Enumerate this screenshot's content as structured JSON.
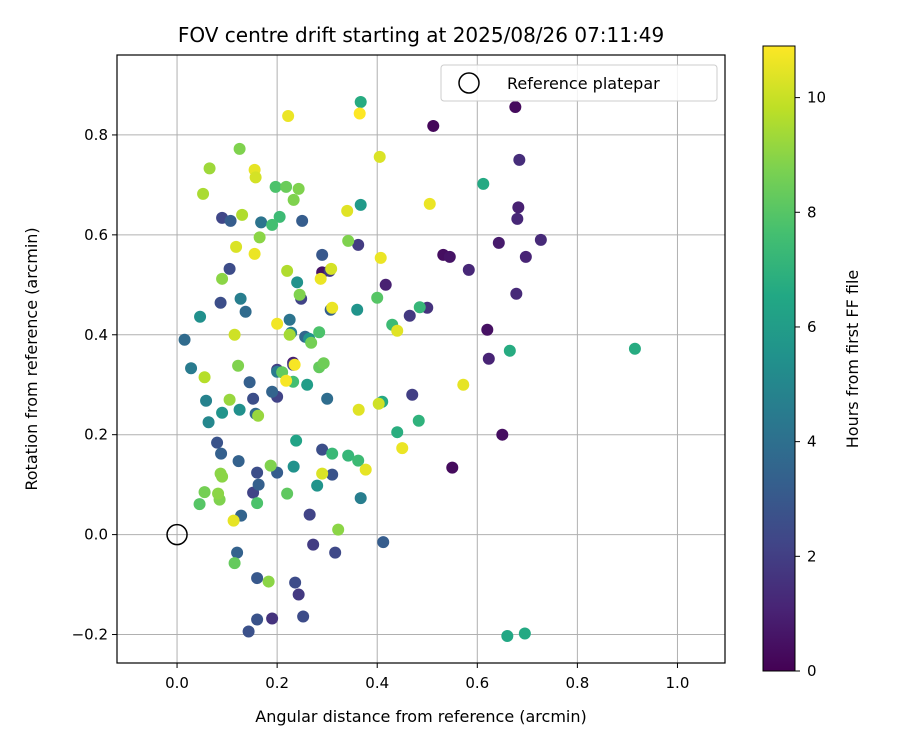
{
  "chart_data": {
    "type": "scatter",
    "title": "FOV centre drift starting at 2025/08/26 07:11:49",
    "xlabel": "Angular distance from reference (arcmin)",
    "ylabel": "Rotation from reference (arcmin)",
    "xlim": [
      -0.12,
      1.095
    ],
    "ylim": [
      -0.257,
      0.96
    ],
    "xticks": [
      0.0,
      0.2,
      0.4,
      0.6,
      0.8,
      1.0
    ],
    "xtick_labels": [
      "0.0",
      "0.2",
      "0.4",
      "0.6",
      "0.8",
      "1.0"
    ],
    "yticks": [
      -0.2,
      0.0,
      0.2,
      0.4,
      0.6,
      0.8
    ],
    "ytick_labels": [
      "−0.2",
      "0.0",
      "0.2",
      "0.4",
      "0.6",
      "0.8"
    ],
    "grid": true,
    "legend": {
      "placement": "top-right",
      "entries": [
        "Reference platepar"
      ]
    },
    "reference_point": {
      "x": 0.0,
      "y": 0.0,
      "label": "Reference platepar"
    },
    "colorbar": {
      "label": "Hours from first FF file",
      "colormap": "viridis",
      "range": [
        0,
        10.9
      ],
      "ticks": [
        0,
        2,
        4,
        6,
        8,
        10
      ],
      "tick_labels": [
        "0",
        "2",
        "4",
        "6",
        "8",
        "10"
      ]
    },
    "points": [
      {
        "x": 0.512,
        "y": 0.818,
        "h": 0.2
      },
      {
        "x": 0.676,
        "y": 0.856,
        "h": 0.3
      },
      {
        "x": 0.684,
        "y": 0.75,
        "h": 1.4
      },
      {
        "x": 0.682,
        "y": 0.655,
        "h": 1.0
      },
      {
        "x": 0.68,
        "y": 0.632,
        "h": 1.2
      },
      {
        "x": 0.727,
        "y": 0.59,
        "h": 1.3
      },
      {
        "x": 0.643,
        "y": 0.584,
        "h": 0.8
      },
      {
        "x": 0.697,
        "y": 0.556,
        "h": 1.1
      },
      {
        "x": 0.532,
        "y": 0.56,
        "h": 0.4
      },
      {
        "x": 0.545,
        "y": 0.556,
        "h": 0.6
      },
      {
        "x": 0.583,
        "y": 0.53,
        "h": 1.2
      },
      {
        "x": 0.678,
        "y": 0.482,
        "h": 1.3
      },
      {
        "x": 0.62,
        "y": 0.41,
        "h": 0.5
      },
      {
        "x": 0.623,
        "y": 0.352,
        "h": 1.1
      },
      {
        "x": 0.65,
        "y": 0.2,
        "h": 0.4
      },
      {
        "x": 0.55,
        "y": 0.134,
        "h": 0.3
      },
      {
        "x": 0.5,
        "y": 0.454,
        "h": 1.6
      },
      {
        "x": 0.465,
        "y": 0.438,
        "h": 1.8
      },
      {
        "x": 0.47,
        "y": 0.28,
        "h": 2.0
      },
      {
        "x": 0.417,
        "y": 0.5,
        "h": 1.0
      },
      {
        "x": 0.362,
        "y": 0.58,
        "h": 1.9
      },
      {
        "x": 0.29,
        "y": 0.525,
        "h": 0.6
      },
      {
        "x": 0.305,
        "y": 0.528,
        "h": 1.8
      },
      {
        "x": 0.29,
        "y": 0.56,
        "h": 3.0
      },
      {
        "x": 0.25,
        "y": 0.628,
        "h": 3.2
      },
      {
        "x": 0.248,
        "y": 0.472,
        "h": 2.2
      },
      {
        "x": 0.232,
        "y": 0.344,
        "h": 0.9
      },
      {
        "x": 0.232,
        "y": 0.34,
        "h": 2.0
      },
      {
        "x": 0.2,
        "y": 0.33,
        "h": 2.0
      },
      {
        "x": 0.2,
        "y": 0.276,
        "h": 2.2
      },
      {
        "x": 0.29,
        "y": 0.17,
        "h": 2.6
      },
      {
        "x": 0.31,
        "y": 0.12,
        "h": 2.8
      },
      {
        "x": 0.265,
        "y": 0.04,
        "h": 2.2
      },
      {
        "x": 0.272,
        "y": -0.02,
        "h": 1.9
      },
      {
        "x": 0.316,
        "y": -0.036,
        "h": 2.4
      },
      {
        "x": 0.412,
        "y": -0.015,
        "h": 3.2
      },
      {
        "x": 0.236,
        "y": -0.096,
        "h": 2.5
      },
      {
        "x": 0.243,
        "y": -0.12,
        "h": 1.8
      },
      {
        "x": 0.252,
        "y": -0.164,
        "h": 2.5
      },
      {
        "x": 0.19,
        "y": -0.168,
        "h": 1.6
      },
      {
        "x": 0.16,
        "y": -0.17,
        "h": 2.8
      },
      {
        "x": 0.143,
        "y": -0.194,
        "h": 2.7
      },
      {
        "x": 0.16,
        "y": -0.087,
        "h": 3.0
      },
      {
        "x": 0.12,
        "y": -0.036,
        "h": 3.4
      },
      {
        "x": 0.128,
        "y": 0.038,
        "h": 3.5
      },
      {
        "x": 0.152,
        "y": 0.084,
        "h": 2.2
      },
      {
        "x": 0.163,
        "y": 0.1,
        "h": 3.3
      },
      {
        "x": 0.16,
        "y": 0.124,
        "h": 2.6
      },
      {
        "x": 0.123,
        "y": 0.147,
        "h": 3.4
      },
      {
        "x": 0.088,
        "y": 0.162,
        "h": 3.3
      },
      {
        "x": 0.08,
        "y": 0.184,
        "h": 2.8
      },
      {
        "x": 0.145,
        "y": 0.305,
        "h": 3.3
      },
      {
        "x": 0.152,
        "y": 0.272,
        "h": 2.6
      },
      {
        "x": 0.157,
        "y": 0.242,
        "h": 3.7
      },
      {
        "x": 0.19,
        "y": 0.286,
        "h": 3.5
      },
      {
        "x": 0.2,
        "y": 0.124,
        "h": 3.2
      },
      {
        "x": 0.256,
        "y": 0.396,
        "h": 3.6
      },
      {
        "x": 0.3,
        "y": 0.272,
        "h": 3.9
      },
      {
        "x": 0.307,
        "y": 0.45,
        "h": 3.3
      },
      {
        "x": 0.28,
        "y": 0.098,
        "h": 5.6
      },
      {
        "x": 0.225,
        "y": 0.43,
        "h": 4.2
      },
      {
        "x": 0.228,
        "y": 0.404,
        "h": 4.7
      },
      {
        "x": 0.2,
        "y": 0.326,
        "h": 4.5
      },
      {
        "x": 0.137,
        "y": 0.446,
        "h": 3.8
      },
      {
        "x": 0.105,
        "y": 0.532,
        "h": 2.5
      },
      {
        "x": 0.087,
        "y": 0.464,
        "h": 2.6
      },
      {
        "x": 0.09,
        "y": 0.634,
        "h": 2.3
      },
      {
        "x": 0.107,
        "y": 0.628,
        "h": 3.2
      },
      {
        "x": 0.168,
        "y": 0.625,
        "h": 4.2
      },
      {
        "x": 0.127,
        "y": 0.472,
        "h": 4.6
      },
      {
        "x": 0.015,
        "y": 0.39,
        "h": 3.8
      },
      {
        "x": 0.028,
        "y": 0.333,
        "h": 4.5
      },
      {
        "x": 0.063,
        "y": 0.225,
        "h": 5.0
      },
      {
        "x": 0.058,
        "y": 0.268,
        "h": 4.8
      },
      {
        "x": 0.09,
        "y": 0.244,
        "h": 5.6
      },
      {
        "x": 0.125,
        "y": 0.25,
        "h": 5.4
      },
      {
        "x": 0.046,
        "y": 0.436,
        "h": 5.4
      },
      {
        "x": 0.36,
        "y": 0.45,
        "h": 5.6
      },
      {
        "x": 0.367,
        "y": 0.66,
        "h": 5.9
      },
      {
        "x": 0.367,
        "y": 0.866,
        "h": 6.7
      },
      {
        "x": 0.367,
        "y": 0.073,
        "h": 4.6
      },
      {
        "x": 0.233,
        "y": 0.136,
        "h": 5.5
      },
      {
        "x": 0.24,
        "y": 0.505,
        "h": 5.5
      },
      {
        "x": 0.264,
        "y": 0.392,
        "h": 5.6
      },
      {
        "x": 0.26,
        "y": 0.3,
        "h": 6.0
      },
      {
        "x": 0.238,
        "y": 0.188,
        "h": 6.3
      },
      {
        "x": 0.612,
        "y": 0.702,
        "h": 6.6
      },
      {
        "x": 0.665,
        "y": 0.368,
        "h": 6.7
      },
      {
        "x": 0.915,
        "y": 0.372,
        "h": 6.7
      },
      {
        "x": 0.66,
        "y": -0.203,
        "h": 6.5
      },
      {
        "x": 0.695,
        "y": -0.198,
        "h": 6.6
      },
      {
        "x": 0.485,
        "y": 0.455,
        "h": 7.2
      },
      {
        "x": 0.483,
        "y": 0.228,
        "h": 7.0
      },
      {
        "x": 0.44,
        "y": 0.205,
        "h": 6.8
      },
      {
        "x": 0.43,
        "y": 0.42,
        "h": 7.4
      },
      {
        "x": 0.41,
        "y": 0.266,
        "h": 6.6
      },
      {
        "x": 0.342,
        "y": 0.158,
        "h": 7.2
      },
      {
        "x": 0.362,
        "y": 0.148,
        "h": 7.4
      },
      {
        "x": 0.31,
        "y": 0.162,
        "h": 7.3
      },
      {
        "x": 0.232,
        "y": 0.306,
        "h": 7.6
      },
      {
        "x": 0.205,
        "y": 0.636,
        "h": 7.4
      },
      {
        "x": 0.19,
        "y": 0.62,
        "h": 7.6
      },
      {
        "x": 0.21,
        "y": 0.325,
        "h": 8.3
      },
      {
        "x": 0.197,
        "y": 0.696,
        "h": 7.8
      },
      {
        "x": 0.218,
        "y": 0.696,
        "h": 8.4
      },
      {
        "x": 0.243,
        "y": 0.692,
        "h": 8.8
      },
      {
        "x": 0.233,
        "y": 0.67,
        "h": 8.8
      },
      {
        "x": 0.284,
        "y": 0.405,
        "h": 7.8
      },
      {
        "x": 0.284,
        "y": 0.335,
        "h": 8.3
      },
      {
        "x": 0.293,
        "y": 0.343,
        "h": 8.5
      },
      {
        "x": 0.268,
        "y": 0.384,
        "h": 8.6
      },
      {
        "x": 0.245,
        "y": 0.48,
        "h": 8.8
      },
      {
        "x": 0.342,
        "y": 0.588,
        "h": 8.8
      },
      {
        "x": 0.4,
        "y": 0.474,
        "h": 8.0
      },
      {
        "x": 0.322,
        "y": 0.01,
        "h": 9.0
      },
      {
        "x": 0.22,
        "y": 0.082,
        "h": 8.2
      },
      {
        "x": 0.183,
        "y": -0.094,
        "h": 9.0
      },
      {
        "x": 0.115,
        "y": -0.057,
        "h": 8.3
      },
      {
        "x": 0.16,
        "y": 0.063,
        "h": 7.8
      },
      {
        "x": 0.055,
        "y": 0.085,
        "h": 8.6
      },
      {
        "x": 0.045,
        "y": 0.061,
        "h": 8.0
      },
      {
        "x": 0.085,
        "y": 0.07,
        "h": 8.8
      },
      {
        "x": 0.082,
        "y": 0.082,
        "h": 9.0
      },
      {
        "x": 0.087,
        "y": 0.122,
        "h": 9.0
      },
      {
        "x": 0.09,
        "y": 0.116,
        "h": 9.0
      },
      {
        "x": 0.187,
        "y": 0.138,
        "h": 8.8
      },
      {
        "x": 0.122,
        "y": 0.338,
        "h": 8.8
      },
      {
        "x": 0.105,
        "y": 0.27,
        "h": 9.2
      },
      {
        "x": 0.162,
        "y": 0.238,
        "h": 9.2
      },
      {
        "x": 0.165,
        "y": 0.595,
        "h": 9.0
      },
      {
        "x": 0.125,
        "y": 0.772,
        "h": 8.8
      },
      {
        "x": 0.065,
        "y": 0.733,
        "h": 9.3
      },
      {
        "x": 0.052,
        "y": 0.682,
        "h": 9.5
      },
      {
        "x": 0.13,
        "y": 0.64,
        "h": 9.6
      },
      {
        "x": 0.09,
        "y": 0.512,
        "h": 9.0
      },
      {
        "x": 0.055,
        "y": 0.315,
        "h": 9.7
      },
      {
        "x": 0.22,
        "y": 0.528,
        "h": 9.6
      },
      {
        "x": 0.225,
        "y": 0.4,
        "h": 9.4
      },
      {
        "x": 0.115,
        "y": 0.4,
        "h": 10.1
      },
      {
        "x": 0.118,
        "y": 0.576,
        "h": 10.3
      },
      {
        "x": 0.155,
        "y": 0.73,
        "h": 10.5
      },
      {
        "x": 0.157,
        "y": 0.715,
        "h": 10.2
      },
      {
        "x": 0.155,
        "y": 0.562,
        "h": 10.6
      },
      {
        "x": 0.222,
        "y": 0.838,
        "h": 10.6
      },
      {
        "x": 0.2,
        "y": 0.422,
        "h": 10.7
      },
      {
        "x": 0.218,
        "y": 0.308,
        "h": 10.8
      },
      {
        "x": 0.235,
        "y": 0.34,
        "h": 10.8
      },
      {
        "x": 0.113,
        "y": 0.028,
        "h": 10.5
      },
      {
        "x": 0.29,
        "y": 0.122,
        "h": 10.3
      },
      {
        "x": 0.287,
        "y": 0.512,
        "h": 10.6
      },
      {
        "x": 0.308,
        "y": 0.532,
        "h": 10.2
      },
      {
        "x": 0.31,
        "y": 0.454,
        "h": 10.6
      },
      {
        "x": 0.34,
        "y": 0.648,
        "h": 10.4
      },
      {
        "x": 0.365,
        "y": 0.843,
        "h": 10.9
      },
      {
        "x": 0.405,
        "y": 0.756,
        "h": 10.3
      },
      {
        "x": 0.407,
        "y": 0.554,
        "h": 10.6
      },
      {
        "x": 0.44,
        "y": 0.408,
        "h": 10.4
      },
      {
        "x": 0.363,
        "y": 0.25,
        "h": 10.4
      },
      {
        "x": 0.403,
        "y": 0.262,
        "h": 10.1
      },
      {
        "x": 0.377,
        "y": 0.13,
        "h": 10.5
      },
      {
        "x": 0.45,
        "y": 0.173,
        "h": 10.6
      },
      {
        "x": 0.505,
        "y": 0.662,
        "h": 10.6
      },
      {
        "x": 0.572,
        "y": 0.3,
        "h": 10.5
      }
    ]
  }
}
